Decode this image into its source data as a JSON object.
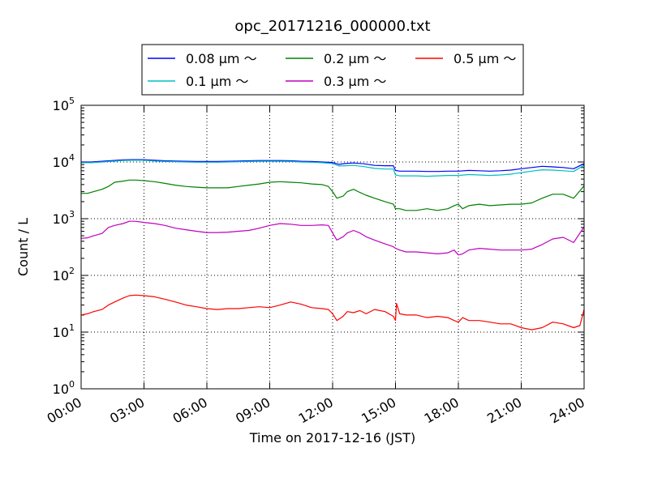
{
  "chart_data": {
    "type": "line",
    "title": "opc_20171216_000000.txt",
    "xlabel": "Time on 2017-12-16 (JST)",
    "ylabel": "Count / L",
    "yscale": "log",
    "ylim": [
      1,
      100000
    ],
    "xlim": [
      0,
      24
    ],
    "x_ticks": [
      0,
      3,
      6,
      9,
      12,
      15,
      18,
      21,
      24
    ],
    "x_tick_labels": [
      "00:00",
      "03:00",
      "06:00",
      "09:00",
      "12:00",
      "15:00",
      "18:00",
      "21:00",
      "24:00"
    ],
    "y_ticks": [
      1,
      10,
      100,
      1000,
      10000,
      100000
    ],
    "y_tick_base": "10",
    "y_tick_exponents": [
      "0",
      "1",
      "2",
      "3",
      "4",
      "5"
    ],
    "grid": true,
    "legend_position": "top-center",
    "series": [
      {
        "name": "0.08 μm ～",
        "color": "#0000ff",
        "x": [
          0,
          0.5,
          1,
          1.5,
          2,
          2.5,
          3,
          3.5,
          4,
          4.5,
          5,
          5.5,
          6,
          6.5,
          7,
          7.5,
          8,
          8.5,
          9,
          9.5,
          10,
          10.5,
          11,
          11.5,
          12,
          12.3,
          12.6,
          13,
          13.5,
          14,
          14.5,
          14.9,
          15,
          15.2,
          15.5,
          16,
          16.5,
          17,
          17.5,
          18,
          18.5,
          19,
          19.5,
          20,
          20.5,
          21,
          21.5,
          22,
          22.5,
          23,
          23.5,
          24
        ],
        "y": [
          10000,
          10000,
          10300,
          10600,
          10900,
          11000,
          11000,
          10700,
          10500,
          10400,
          10300,
          10200,
          10200,
          10200,
          10300,
          10400,
          10500,
          10600,
          10600,
          10600,
          10500,
          10300,
          10200,
          10000,
          9800,
          9100,
          9400,
          9600,
          9300,
          8700,
          8600,
          8600,
          7100,
          6900,
          6900,
          6900,
          6800,
          6800,
          6900,
          6900,
          7100,
          7000,
          6900,
          7000,
          7200,
          7600,
          8000,
          8400,
          8200,
          8000,
          7600,
          9400
        ]
      },
      {
        "name": "0.1 μm ～",
        "color": "#00bfbf",
        "x": [
          0,
          0.5,
          1,
          1.5,
          2,
          2.5,
          3,
          3.5,
          4,
          4.5,
          5,
          5.5,
          6,
          6.5,
          7,
          7.5,
          8,
          8.5,
          9,
          9.5,
          10,
          10.5,
          11,
          11.5,
          12,
          12.3,
          12.6,
          13,
          13.5,
          14,
          14.5,
          14.9,
          15,
          15.2,
          15.5,
          16,
          16.5,
          17,
          17.5,
          18,
          18.5,
          19,
          19.5,
          20,
          20.5,
          21,
          21.5,
          22,
          22.5,
          23,
          23.5,
          24
        ],
        "y": [
          9700,
          9700,
          10000,
          10300,
          10600,
          10700,
          10700,
          10400,
          10200,
          10100,
          10000,
          9900,
          9900,
          9900,
          10000,
          10100,
          10200,
          10300,
          10300,
          10300,
          10200,
          10000,
          9900,
          9700,
          9400,
          8500,
          8600,
          8700,
          8300,
          7700,
          7500,
          7500,
          5900,
          5700,
          5700,
          5700,
          5600,
          5700,
          5800,
          5800,
          6000,
          5900,
          5800,
          5900,
          6100,
          6500,
          6900,
          7300,
          7200,
          7000,
          6800,
          8800
        ]
      },
      {
        "name": "0.2 μm ～",
        "color": "#008000",
        "x": [
          0,
          0.3,
          0.6,
          1,
          1.3,
          1.6,
          2,
          2.3,
          2.6,
          3,
          3.5,
          4,
          4.5,
          5,
          5.5,
          6,
          6.5,
          7,
          7.5,
          8,
          8.5,
          9,
          9.5,
          10,
          10.5,
          11,
          11.5,
          11.8,
          12,
          12.2,
          12.5,
          12.7,
          13,
          13.3,
          13.6,
          14,
          14.5,
          14.9,
          15,
          15.2,
          15.5,
          16,
          16.5,
          17,
          17.5,
          17.8,
          18,
          18.2,
          18.5,
          19,
          19.5,
          20,
          20.5,
          21,
          21.5,
          22,
          22.5,
          23,
          23.5,
          24
        ],
        "y": [
          2800,
          2800,
          3000,
          3300,
          3700,
          4400,
          4600,
          4800,
          4800,
          4700,
          4500,
          4200,
          3900,
          3700,
          3600,
          3500,
          3500,
          3500,
          3700,
          3900,
          4100,
          4400,
          4500,
          4400,
          4300,
          4100,
          4000,
          3700,
          3000,
          2300,
          2500,
          3000,
          3300,
          2900,
          2600,
          2300,
          2000,
          1800,
          1500,
          1500,
          1400,
          1400,
          1500,
          1400,
          1500,
          1700,
          1800,
          1500,
          1700,
          1800,
          1700,
          1750,
          1800,
          1800,
          1900,
          2300,
          2700,
          2700,
          2300,
          3800
        ]
      },
      {
        "name": "0.3 μm ～",
        "color": "#bf00bf",
        "x": [
          0,
          0.3,
          0.6,
          1,
          1.3,
          1.6,
          2,
          2.3,
          2.6,
          3,
          3.5,
          4,
          4.5,
          5,
          5.5,
          6,
          6.5,
          7,
          7.5,
          8,
          8.5,
          9,
          9.5,
          10,
          10.5,
          11,
          11.5,
          11.8,
          12,
          12.2,
          12.5,
          12.7,
          13,
          13.3,
          13.6,
          14,
          14.5,
          14.9,
          15,
          15.2,
          15.5,
          16,
          16.5,
          17,
          17.5,
          17.8,
          18,
          18.2,
          18.5,
          19,
          19.5,
          20,
          20.5,
          21,
          21.5,
          22,
          22.5,
          23,
          23.5,
          24
        ],
        "y": [
          450,
          460,
          500,
          550,
          700,
          760,
          820,
          900,
          900,
          860,
          820,
          760,
          680,
          640,
          600,
          570,
          570,
          580,
          600,
          620,
          680,
          760,
          820,
          800,
          760,
          760,
          780,
          760,
          560,
          420,
          480,
          560,
          620,
          560,
          480,
          420,
          360,
          320,
          300,
          280,
          260,
          260,
          250,
          240,
          250,
          280,
          230,
          240,
          280,
          300,
          290,
          280,
          280,
          280,
          290,
          350,
          440,
          470,
          380,
          720
        ]
      },
      {
        "name": "0.5 μm ～",
        "color": "#ff0000",
        "x": [
          0,
          0.3,
          0.6,
          1,
          1.3,
          1.6,
          2,
          2.3,
          2.6,
          3,
          3.5,
          4,
          4.5,
          5,
          5.5,
          6,
          6.5,
          7,
          7.5,
          8,
          8.5,
          9,
          9.5,
          10,
          10.5,
          11,
          11.5,
          11.8,
          12,
          12.2,
          12.5,
          12.7,
          13,
          13.3,
          13.6,
          14,
          14.5,
          14.9,
          15,
          15.05,
          15.2,
          15.5,
          16,
          16.5,
          17,
          17.5,
          17.8,
          18,
          18.2,
          18.5,
          19,
          19.5,
          20,
          20.5,
          21,
          21.5,
          22,
          22.5,
          23,
          23.5,
          23.8,
          24
        ],
        "y": [
          20,
          21,
          23,
          25,
          30,
          34,
          40,
          44,
          45,
          44,
          42,
          38,
          34,
          30,
          28,
          26,
          25,
          26,
          26,
          27,
          28,
          27,
          30,
          34,
          31,
          27,
          26,
          25,
          21,
          16,
          19,
          23,
          22,
          24,
          21,
          25,
          23,
          19,
          16,
          32,
          21,
          20,
          20,
          18,
          19,
          18,
          16,
          15,
          18,
          16,
          16,
          15,
          14,
          14,
          12,
          11,
          12,
          15,
          14,
          12,
          13,
          25
        ]
      }
    ]
  }
}
